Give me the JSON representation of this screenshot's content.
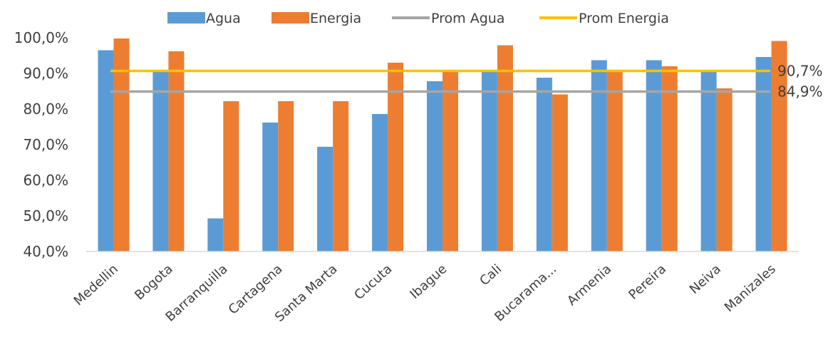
{
  "chart_data": {
    "type": "bar",
    "title": "",
    "xlabel": "",
    "ylabel": "",
    "ylim": [
      40,
      100
    ],
    "y_ticks": [
      "40,0%",
      "50,0%",
      "60,0%",
      "70,0%",
      "80,0%",
      "90,0%",
      "100,0%"
    ],
    "grid": false,
    "legend_position": "top",
    "categories": [
      "Medellin",
      "Bogota",
      "Barranquilla",
      "Cartagena",
      "Santa Marta",
      "Cucuta",
      "Ibague",
      "Cali",
      "Bucarama...",
      "Armenia",
      "Pereira",
      "Neiva",
      "Manizales"
    ],
    "series": [
      {
        "name": "Agua",
        "color": "#5b9bd5",
        "values": [
          96.5,
          90.5,
          49.3,
          76.2,
          69.4,
          78.6,
          87.8,
          90.8,
          88.8,
          93.7,
          93.7,
          90.7,
          94.6
        ]
      },
      {
        "name": "Energia",
        "color": "#ed7d31",
        "values": [
          99.8,
          96.2,
          82.2,
          82.2,
          82.2,
          93.0,
          90.7,
          97.9,
          84.1,
          90.7,
          92.0,
          85.8,
          99.1
        ]
      }
    ],
    "reference_lines": [
      {
        "name": "Prom Agua",
        "color": "#a5a5a5",
        "value": 84.9,
        "label": "84,9%"
      },
      {
        "name": "Prom Energia",
        "color": "#ffc000",
        "value": 90.7,
        "label": "90,7%"
      }
    ]
  }
}
